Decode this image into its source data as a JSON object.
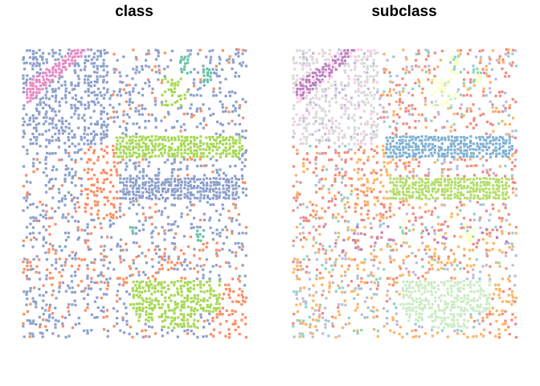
{
  "chart_data": [
    {
      "type": "scatter",
      "title": "class",
      "legend": "none",
      "grid": false,
      "axes": "none",
      "palette": {
        "main": "#8da0cb",
        "orange": "#fc8d62",
        "green": "#a6d854",
        "teal": "#66c2a5",
        "pink": "#e78ac3"
      }
    },
    {
      "type": "scatter",
      "title": "subclass",
      "legend": "none",
      "grid": false,
      "axes": "none",
      "palette": {
        "red": "#ef8a7f",
        "blue": "#80b1d3",
        "lime": "#b3de69",
        "mint": "#8dd3c7",
        "lavender": "#bebada",
        "orange": "#fdb462",
        "pale_green": "#ccebc5",
        "light_pink": "#fccde5",
        "grey": "#d9d9d9",
        "purple": "#bc80bd",
        "yellow": "#ffffb3"
      }
    }
  ]
}
